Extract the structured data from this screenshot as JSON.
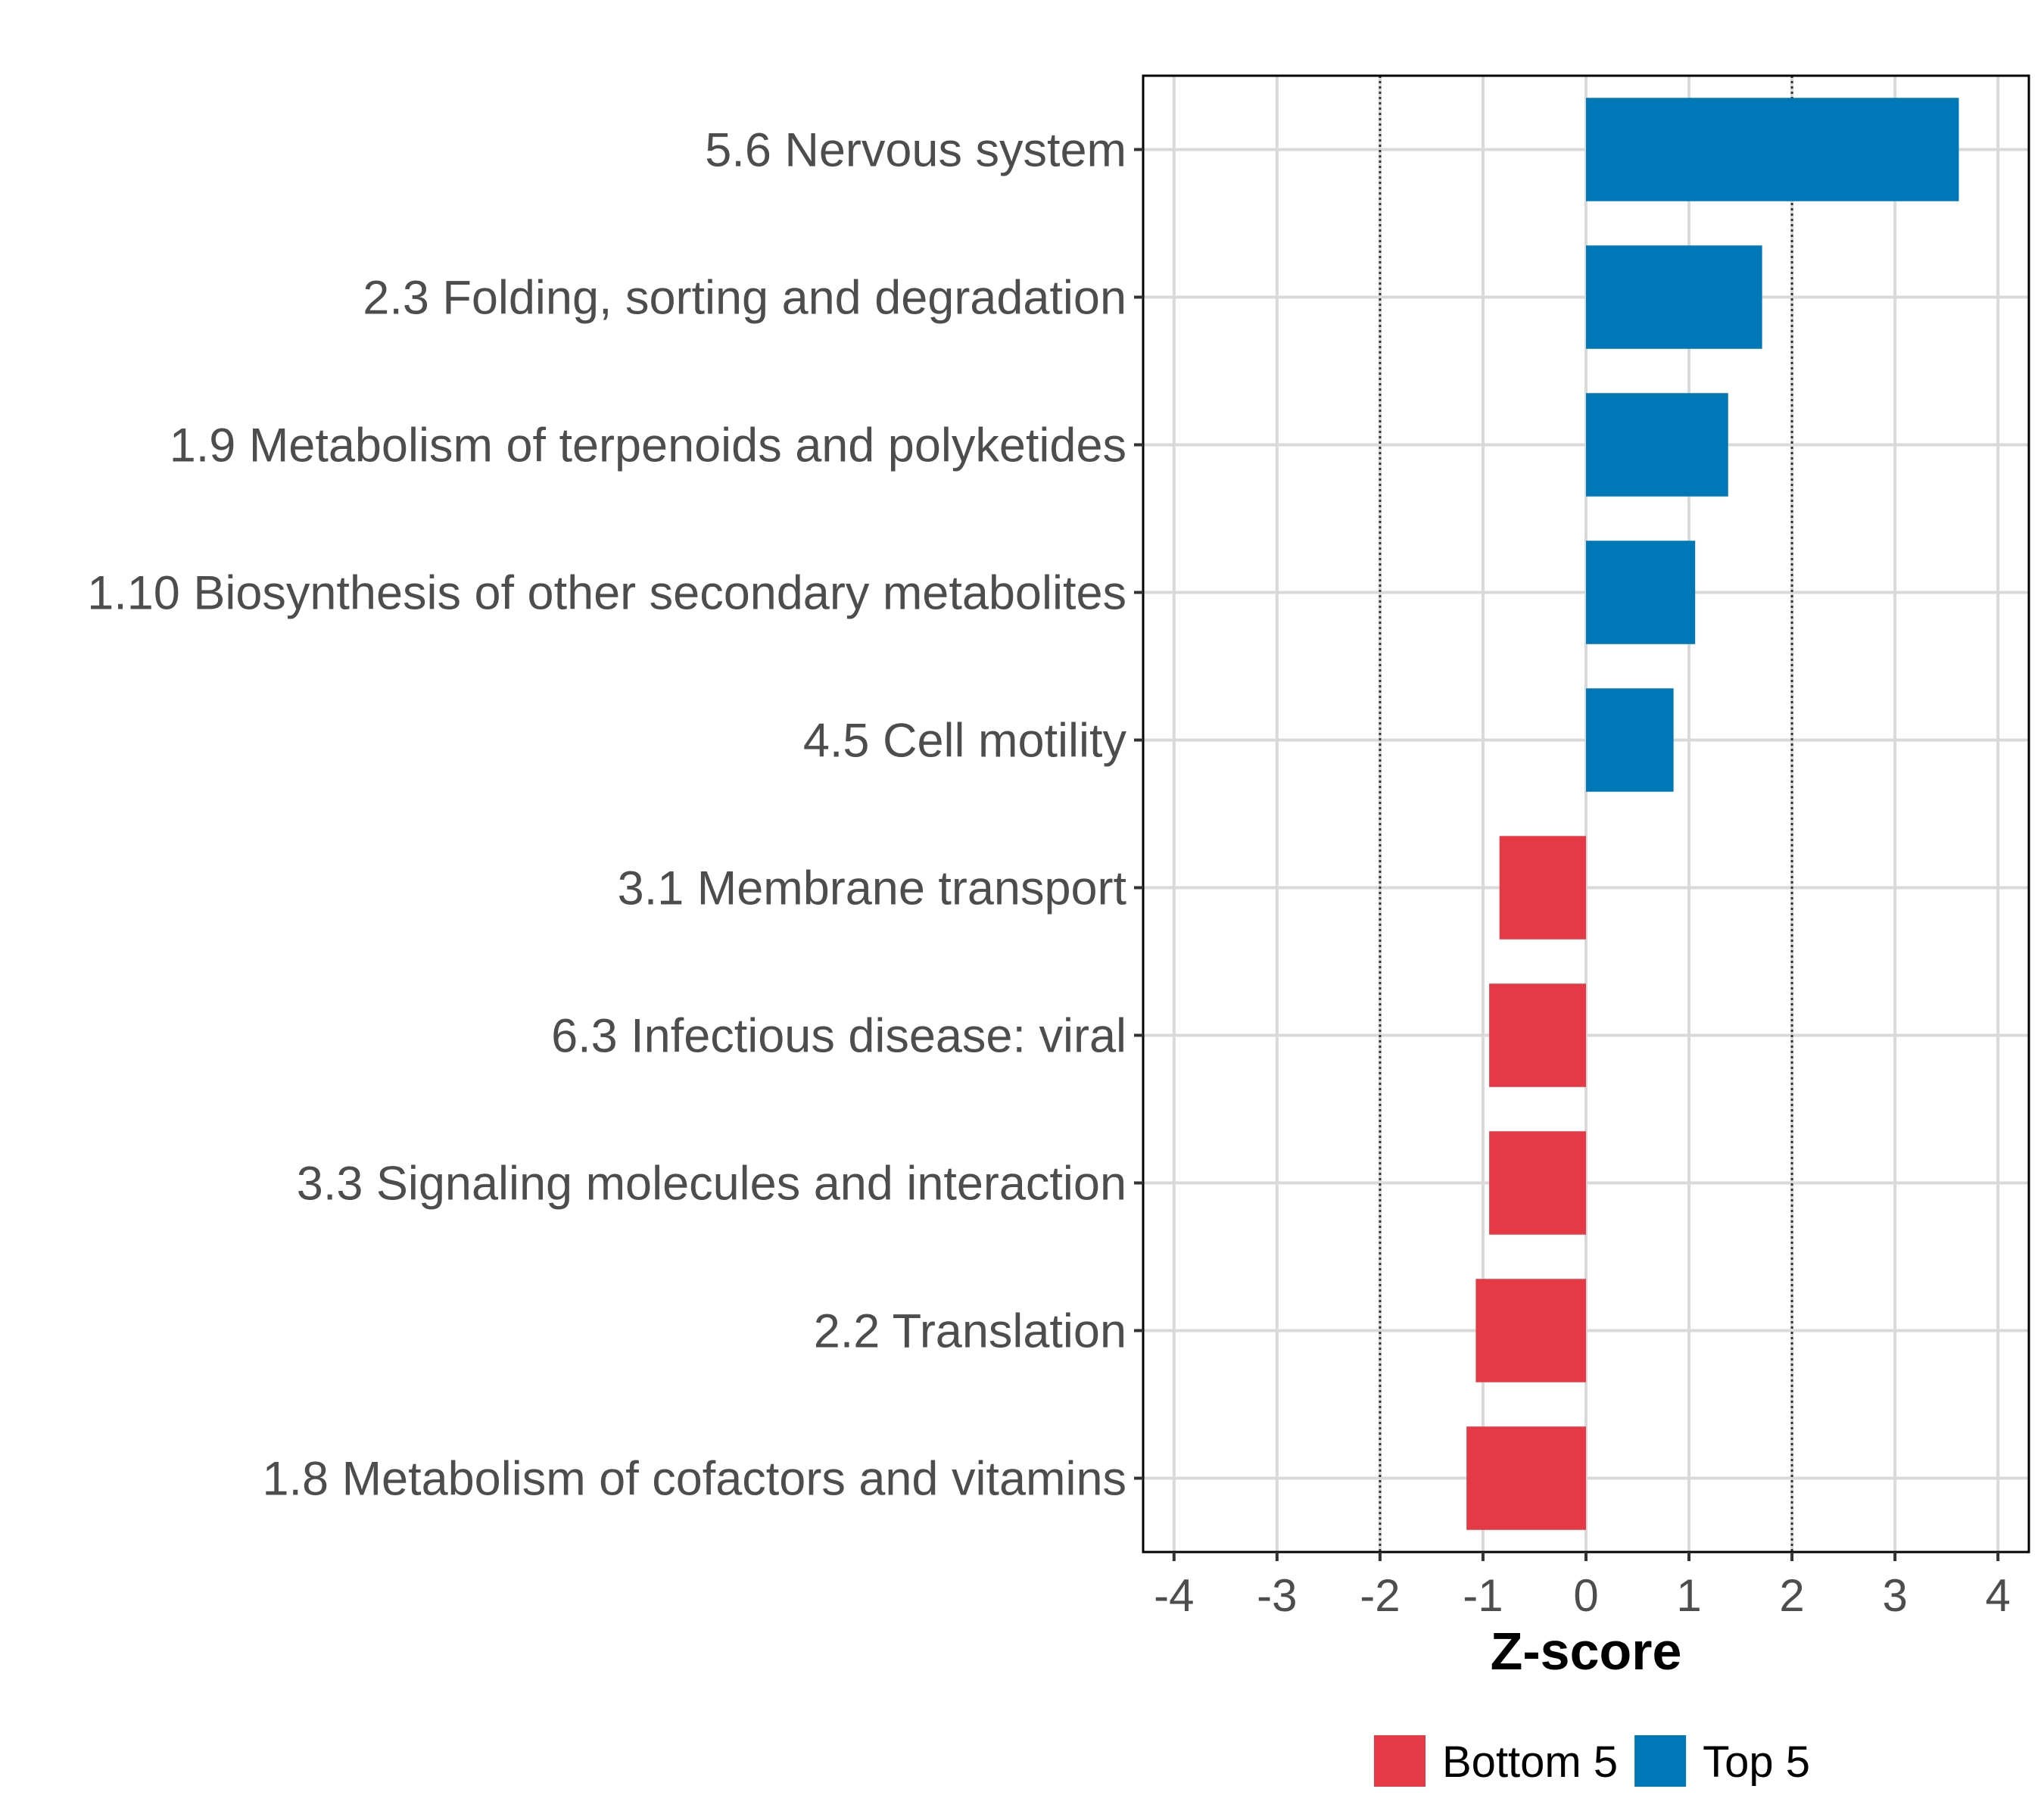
{
  "chart_data": {
    "type": "bar",
    "orientation": "horizontal",
    "categories": [
      "5.6 Nervous system",
      "2.3 Folding, sorting and degradation",
      "1.9 Metabolism of terpenoids and polyketides",
      "1.10 Biosynthesis of other secondary metabolites",
      "4.5 Cell motility",
      "3.1 Membrane transport",
      "6.3 Infectious disease: viral",
      "3.3 Signaling molecules and interaction",
      "2.2 Translation",
      "1.8 Metabolism of cofactors and vitamins"
    ],
    "values": [
      3.62,
      1.71,
      1.38,
      1.06,
      0.85,
      -0.84,
      -0.94,
      -0.94,
      -1.07,
      -1.16
    ],
    "groups": [
      "Top 5",
      "Top 5",
      "Top 5",
      "Top 5",
      "Top 5",
      "Bottom 5",
      "Bottom 5",
      "Bottom 5",
      "Bottom 5",
      "Bottom 5"
    ],
    "xlabel": "Z-score",
    "ylabel": "",
    "xlim": [
      -4.3,
      4.3
    ],
    "xticks": [
      -4,
      -3,
      -2,
      -1,
      0,
      1,
      2,
      3,
      4
    ],
    "xtick_labels": [
      "-4",
      "-3",
      "-2",
      "-1",
      "0",
      "1",
      "2",
      "3",
      "4"
    ],
    "reference_lines": [
      -2,
      2
    ],
    "grid": true,
    "legend": {
      "position": "bottom",
      "entries": [
        {
          "label": "Bottom 5",
          "color": "#E63946"
        },
        {
          "label": "Top 5",
          "color": "#0077B6"
        }
      ]
    },
    "colors": {
      "Bottom 5": "#E63946",
      "Top 5": "#0077B6"
    }
  }
}
